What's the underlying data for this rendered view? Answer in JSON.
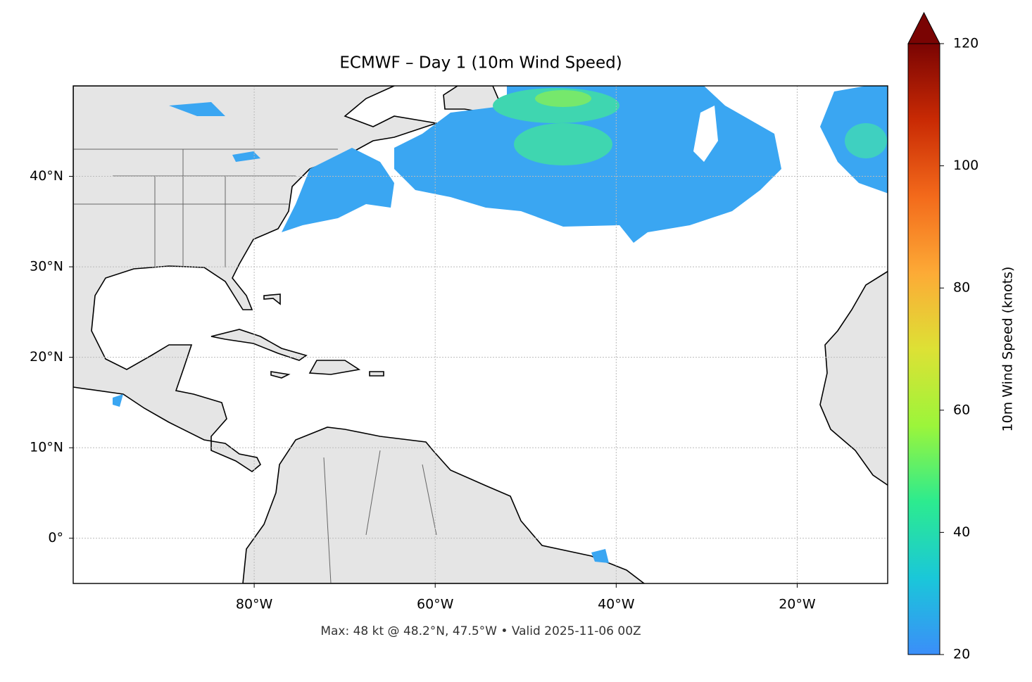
{
  "chart_data": {
    "type": "map",
    "title": "ECMWF – Day 1 (10m Wind Speed)",
    "xlim": [
      -100,
      -10
    ],
    "ylim": [
      -5,
      50
    ],
    "xticks": [
      {
        "value": -80,
        "label": "80°W"
      },
      {
        "value": -60,
        "label": "60°W"
      },
      {
        "value": -40,
        "label": "40°W"
      },
      {
        "value": -20,
        "label": "20°W"
      }
    ],
    "yticks": [
      {
        "value": 0,
        "label": "0°"
      },
      {
        "value": 10,
        "label": "10°N"
      },
      {
        "value": 20,
        "label": "20°N"
      },
      {
        "value": 30,
        "label": "30°N"
      },
      {
        "value": 40,
        "label": "40°N"
      }
    ],
    "grid": true,
    "colorbar": {
      "label": "10m Wind Speed (knots)",
      "lim": [
        20,
        120
      ],
      "ticks": [
        20,
        40,
        60,
        80,
        100,
        120
      ],
      "colors": [
        "#3b8ef9",
        "#1ac7d9",
        "#2ceb8f",
        "#9cf53a",
        "#dde135",
        "#fdaa36",
        "#f36a1b",
        "#c92a04",
        "#7a0403"
      ],
      "extend": "max"
    },
    "annotation": "Max: 48 kt @ 48.2°N, 47.5°W • Valid 2025-11-06 00Z"
  }
}
